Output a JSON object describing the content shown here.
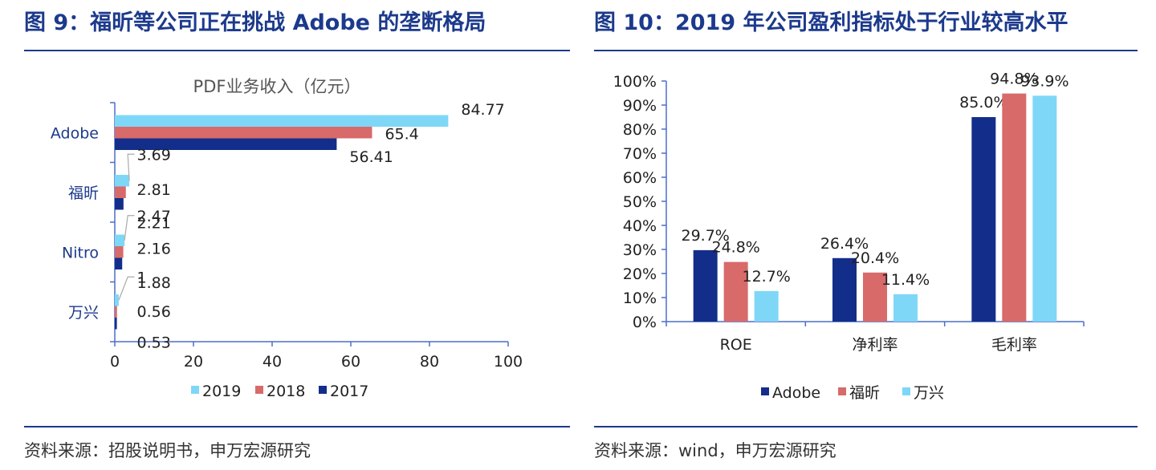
{
  "figures": [
    {
      "title": "图 9：福昕等公司正在挑战 Adobe 的垄断格局",
      "source": "资料来源：招股说明书，申万宏源研究"
    },
    {
      "title": "图 10：2019 年公司盈利指标处于行业较高水平",
      "source": "资料来源：wind，申万宏源研究"
    }
  ],
  "chart_data": [
    {
      "type": "bar",
      "orientation": "horizontal",
      "title": "PDF业务收入（亿元）",
      "categories": [
        "Adobe",
        "福昕",
        "Nitro",
        "万兴"
      ],
      "series": [
        {
          "name": "2019",
          "values": [
            84.77,
            3.69,
            2.47,
            1
          ],
          "labels": [
            "84.77",
            "3.69",
            "2.47",
            "1"
          ]
        },
        {
          "name": "2018",
          "values": [
            65.4,
            2.81,
            2.16,
            0.56
          ],
          "labels": [
            "65.4",
            "2.81",
            "2.16",
            "0.56"
          ]
        },
        {
          "name": "2017",
          "values": [
            56.41,
            2.21,
            1.88,
            0.53
          ],
          "labels": [
            "56.41",
            "2.21",
            "1.88",
            "0.53"
          ]
        }
      ],
      "xlim": [
        0,
        100
      ],
      "xticks": [
        "0",
        "20",
        "40",
        "60",
        "80",
        "100"
      ],
      "grid": false,
      "legend": "bottom"
    },
    {
      "type": "bar",
      "title": "",
      "categories": [
        "ROE",
        "净利率",
        "毛利率"
      ],
      "series": [
        {
          "name": "Adobe",
          "values": [
            29.7,
            26.4,
            85.0
          ],
          "labels": [
            "29.7%",
            "26.4%",
            "85.0%"
          ]
        },
        {
          "name": "福昕",
          "values": [
            24.8,
            20.4,
            94.8
          ],
          "labels": [
            "24.8%",
            "20.4%",
            "94.8%"
          ]
        },
        {
          "name": "万兴",
          "values": [
            12.7,
            11.4,
            93.9
          ],
          "labels": [
            "12.7%",
            "11.4%",
            "93.9%"
          ]
        }
      ],
      "ylim": [
        0,
        100
      ],
      "yticks": [
        "0%",
        "10%",
        "20%",
        "30%",
        "40%",
        "50%",
        "60%",
        "70%",
        "80%",
        "90%",
        "100%"
      ],
      "grid": false,
      "legend": "bottom"
    }
  ],
  "colors": {
    "2019": "#7fd7f7",
    "2018": "#d86a6a",
    "2017": "#132e8a",
    "Adobe": "#132e8a",
    "福昕": "#d86a6a",
    "万兴": "#7fd7f7",
    "accent": "#1c3a8c"
  }
}
